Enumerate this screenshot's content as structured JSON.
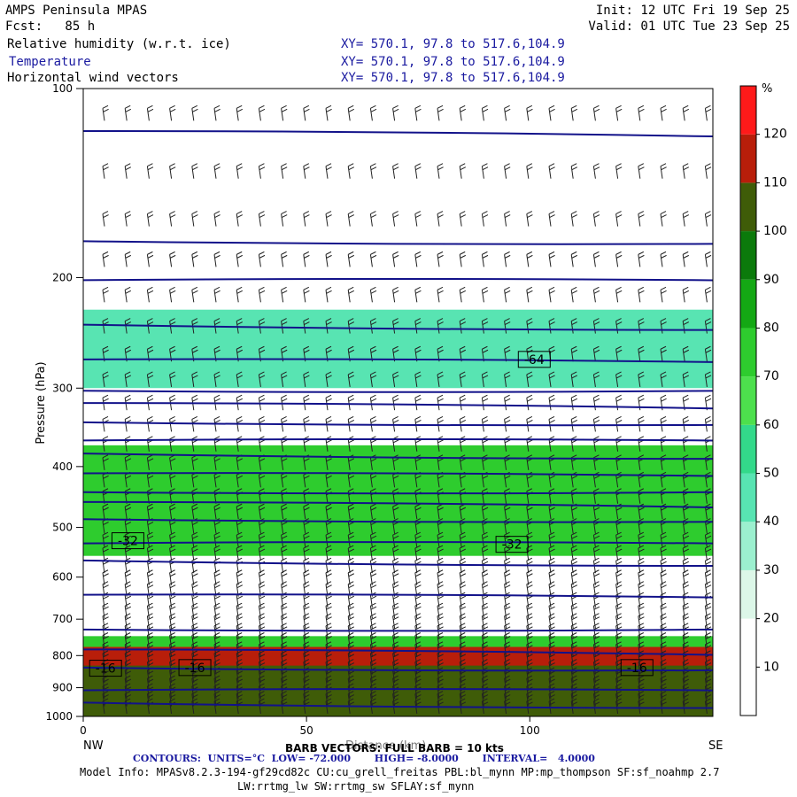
{
  "header": {
    "model": "AMPS Peninsula MPAS",
    "forecast": "Fcst:   85 h",
    "init": "Init: 12 UTC Fri 19 Sep 25",
    "valid": "Valid: 01 UTC Tue 23 Sep 25",
    "fields": [
      {
        "label": "Relative humidity (w.r.t. ice)",
        "xy": "XY= 570.1, 97.8 to 517.6,104.9"
      },
      {
        "label": "Temperature",
        "xy": "XY= 570.1, 97.8 to 517.6,104.9"
      },
      {
        "label": "Horizontal wind vectors",
        "xy": "XY= 570.1, 97.8 to 517.6,104.9"
      }
    ]
  },
  "chart_data": {
    "type": "heatmap",
    "ylabel": "Pressure (hPa)",
    "xlabel": "Distance (km)",
    "x_ticks": [
      0,
      50,
      100
    ],
    "xlim": [
      0,
      141
    ],
    "y_ticks": [
      100,
      200,
      300,
      400,
      500,
      600,
      700,
      800,
      900,
      1000
    ],
    "ylim": [
      1000,
      100
    ],
    "y_scale": "log",
    "x_end_labels": {
      "left": "NW",
      "right": "SE"
    },
    "colorbar": {
      "unit": "%",
      "levels": [
        10,
        20,
        30,
        40,
        50,
        60,
        70,
        80,
        90,
        100,
        110,
        120
      ],
      "colors": [
        "#ffffff",
        "#ffffff",
        "#dcf7e8",
        "#9cf0cf",
        "#58e4b2",
        "#33d98a",
        "#4de04d",
        "#2ecc2e",
        "#14a814",
        "#0b7a0b",
        "#3f5c08",
        "#b81e0a",
        "#ff1a1a"
      ]
    },
    "rh_layers": [
      {
        "p_top": 225,
        "p_bottom": 300,
        "rh": 45
      },
      {
        "p_top": 370,
        "p_bottom": 555,
        "rh": 75
      },
      {
        "p_top": 745,
        "p_bottom": 775,
        "rh": 75
      },
      {
        "p_top": 775,
        "p_bottom": 880,
        "rh": 115
      },
      {
        "p_top": 830,
        "p_bottom": 1000,
        "rh": 105
      }
    ],
    "temperature_contours": {
      "units": "°C",
      "low": "-72.000",
      "high": "-8.0000",
      "interval": "4.0000",
      "labels": [
        {
          "text": "-64",
          "x": 101,
          "p": 270
        },
        {
          "text": "-32",
          "x": 10,
          "p": 525
        },
        {
          "text": "-32",
          "x": 96,
          "p": 532
        },
        {
          "text": "-16",
          "x": 5,
          "p": 838
        },
        {
          "text": "-16",
          "x": 25,
          "p": 836
        },
        {
          "text": "-16",
          "x": 124,
          "p": 836
        }
      ]
    },
    "barb_note": "BARB VECTORS: FULL BARB = 10 kts"
  },
  "footer": {
    "contours": "CONTOURS:  UNITS=°C  LOW= -72.000       HIGH= -8.0000       INTERVAL=   4.0000",
    "model_info": "Model Info: MPASv8.2.3-194-gf29cd82c CU:cu_grell_freitas PBL:bl_mynn MP:mp_thompson SF:sf_noahmp 2.7",
    "model_info2": "LW:rrtmg_lw SW:rrtmg_sw SFLAY:sf_mynn"
  }
}
